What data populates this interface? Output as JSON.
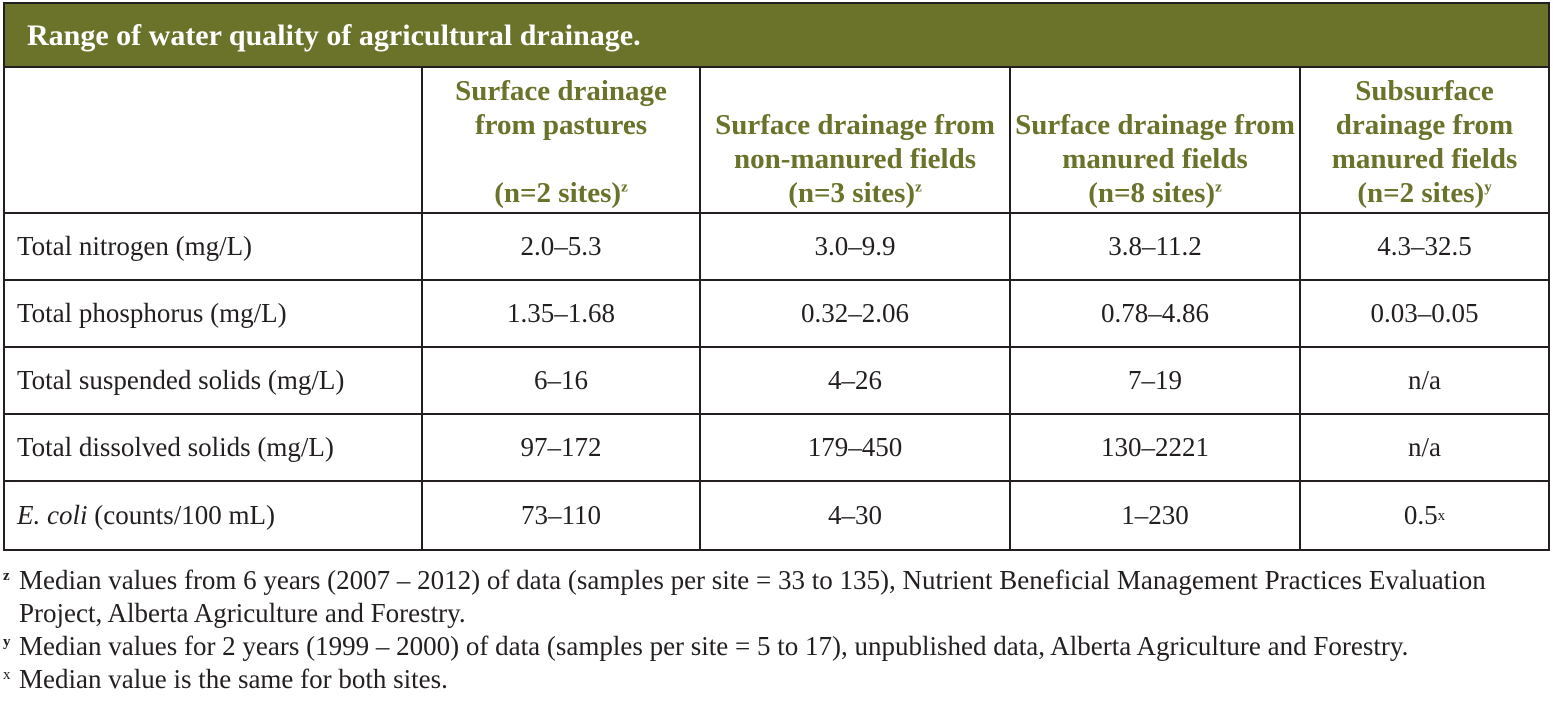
{
  "table": {
    "title": "Range of water quality of agricultural drainage.",
    "columns": [
      {
        "label": "",
        "n": "",
        "sup": ""
      },
      {
        "label": "Surface drainage from pastures",
        "n": "(n=2 sites)",
        "sup": "z"
      },
      {
        "label": "Surface drainage from non-manured fields",
        "n": "(n=3 sites)",
        "sup": "z"
      },
      {
        "label": "Surface drainage from manured fields",
        "n": "(n=8 sites)",
        "sup": "z"
      },
      {
        "label": "Subsurface drainage from manured fields",
        "n": "(n=2 sites)",
        "sup": "y"
      }
    ],
    "rows": [
      {
        "parameter": "Total nitrogen (mg/L)",
        "values": [
          "2.0–5.3",
          "3.0–9.9",
          "3.8–11.2",
          "4.3–32.5"
        ]
      },
      {
        "parameter": "Total phosphorus (mg/L)",
        "values": [
          "1.35–1.68",
          "0.32–2.06",
          "0.78–4.86",
          "0.03–0.05"
        ]
      },
      {
        "parameter": "Total suspended solids (mg/L)",
        "values": [
          "6–16",
          "4–26",
          "7–19",
          "n/a"
        ]
      },
      {
        "parameter": "Total dissolved solids (mg/L)",
        "values": [
          "97–172",
          "179–450",
          "130–2221",
          "n/a"
        ]
      },
      {
        "parameter_italic": "E. coli",
        "parameter_rest": " (counts/100 mL)",
        "values": [
          "73–110",
          "4–30",
          "1–230",
          "0.5"
        ],
        "last_sup": "x"
      }
    ]
  },
  "footnotes": [
    {
      "mark": "z",
      "text": "Median values from 6 years (2007 – 2012) of data (samples per site = 33 to 135), Nutrient Beneficial Management Practices Evaluation Project, Alberta Agriculture and Forestry."
    },
    {
      "mark": "y",
      "text": "Median values for 2 years (1999 – 2000) of data (samples per site = 5 to 17), unpublished data, Alberta Agriculture and Forestry."
    },
    {
      "mark": "x",
      "text": "Median value is the same for both sites."
    }
  ],
  "colors": {
    "header_bg": "#6b722a",
    "header_text": "#ffffff",
    "column_header_text": "#6b722a",
    "border": "#231f20"
  }
}
